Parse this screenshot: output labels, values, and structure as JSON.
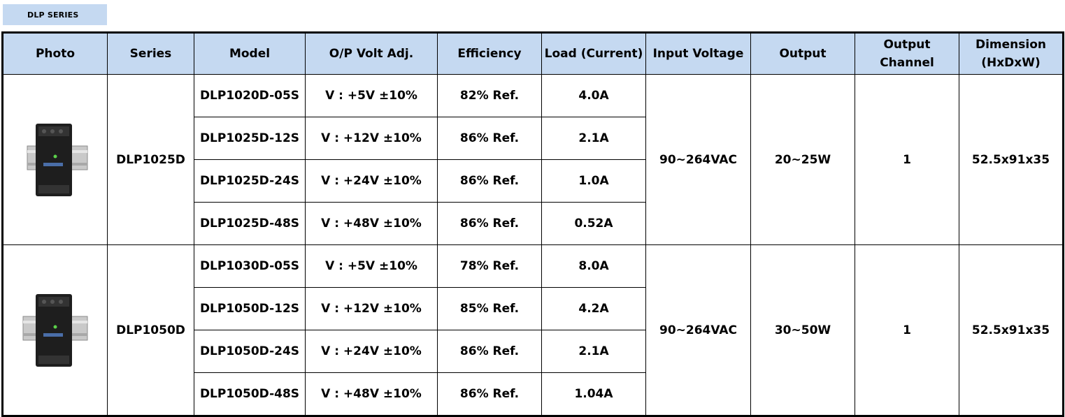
{
  "series_tag": "DLP SERIES",
  "headers": {
    "photo": "Photo",
    "series": "Series",
    "model": "Model",
    "op_volt": "O/P Volt Adj.",
    "efficiency": "Efficiency",
    "load": "Load (Current)",
    "input_voltage": "Input Voltage",
    "output": "Output",
    "output_channel_1": "Output",
    "output_channel_2": "Channel",
    "dimension_1": "Dimension",
    "dimension_2": "(HxDxW)"
  },
  "groups": [
    {
      "series": "DLP1025D",
      "input_voltage": "90~264VAC",
      "output": "20~25W",
      "channel": "1",
      "dimension": "52.5x91x35",
      "rows": [
        {
          "model": "DLP1020D-05S",
          "volt": "V : +5V ±10%",
          "efficiency": "82% Ref.",
          "load": "4.0A"
        },
        {
          "model": "DLP1025D-12S",
          "volt": "V : +12V ±10%",
          "efficiency": "86% Ref.",
          "load": "2.1A"
        },
        {
          "model": "DLP1025D-24S",
          "volt": "V : +24V ±10%",
          "efficiency": "86% Ref.",
          "load": "1.0A"
        },
        {
          "model": "DLP1025D-48S",
          "volt": "V : +48V ±10%",
          "efficiency": "86% Ref.",
          "load": "0.52A"
        }
      ]
    },
    {
      "series": "DLP1050D",
      "input_voltage": "90~264VAC",
      "output": "30~50W",
      "channel": "1",
      "dimension": "52.5x91x35",
      "rows": [
        {
          "model": "DLP1030D-05S",
          "volt": "V : +5V ±10%",
          "efficiency": "78% Ref.",
          "load": "8.0A"
        },
        {
          "model": "DLP1050D-12S",
          "volt": "V : +12V ±10%",
          "efficiency": "85% Ref.",
          "load": "4.2A"
        },
        {
          "model": "DLP1050D-24S",
          "volt": "V : +24V ±10%",
          "efficiency": "86% Ref.",
          "load": "2.1A"
        },
        {
          "model": "DLP1050D-48S",
          "volt": "V : +48V ±10%",
          "efficiency": "86% Ref.",
          "load": "1.04A"
        }
      ]
    }
  ]
}
